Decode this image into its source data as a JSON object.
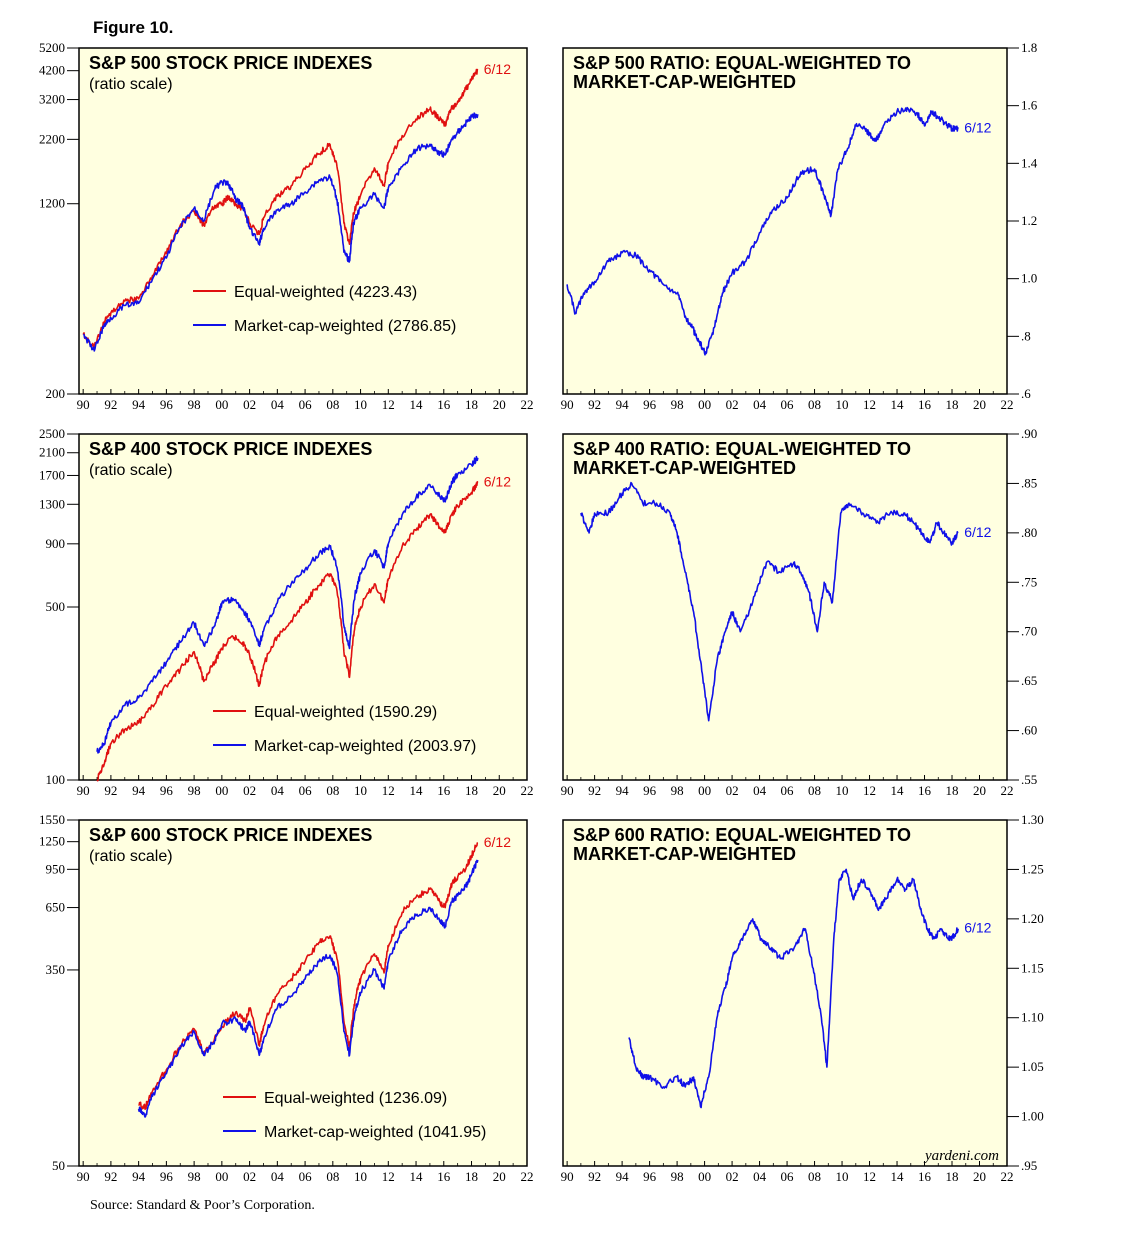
{
  "figure_title": "Figure 10.",
  "source": "Source: Standard & Poor’s Corporation.",
  "watermark": "yardeni.com",
  "colors": {
    "equal": "#e01010",
    "cap": "#1010e8",
    "panel_bg": "#ffffe0"
  },
  "chart_data": [
    {
      "type": "line",
      "title": "S&P 500 STOCK PRICE INDEXES",
      "subtitle": "(ratio scale)",
      "scale": "log",
      "ylim": [
        200,
        5200
      ],
      "yticks": [
        200,
        1200,
        2200,
        3200,
        4200,
        5200
      ],
      "ytick_labels": [
        "200",
        "1200",
        "2200",
        "3200",
        "4200",
        "5200"
      ],
      "axis_side": "left",
      "xlim": [
        1989.7,
        2022
      ],
      "xtick_labels": [
        "90",
        "92",
        "94",
        "96",
        "98",
        "00",
        "02",
        "04",
        "06",
        "08",
        "10",
        "12",
        "14",
        "16",
        "18",
        "20",
        "22"
      ],
      "end_label": "6/12",
      "end_label_series": 0,
      "legend_placement": "center",
      "series": [
        {
          "name": "Equal-weighted (4223.43)",
          "color": "#e01010",
          "x": [
            1990,
            1990.8,
            1991.5,
            1992,
            1993,
            1994,
            1995,
            1996,
            1997,
            1998,
            1998.7,
            1999.5,
            2000,
            2000.5,
            2001,
            2001.5,
            2002,
            2002.7,
            2003,
            2004,
            2005,
            2006,
            2007,
            2007.8,
            2008.3,
            2008.8,
            2009.2,
            2009.5,
            2010,
            2011,
            2011.7,
            2012,
            2013,
            2014,
            2015,
            2015.6,
            2016.1,
            2016.5,
            2017,
            2017.5,
            2018,
            2018.45
          ],
          "y": [
            350,
            310,
            390,
            430,
            480,
            490,
            610,
            750,
            980,
            1120,
            980,
            1180,
            1200,
            1280,
            1190,
            1150,
            1000,
            900,
            1050,
            1290,
            1420,
            1660,
            1920,
            2100,
            1700,
            1000,
            820,
            1100,
            1300,
            1680,
            1420,
            1760,
            2280,
            2660,
            2920,
            2700,
            2540,
            2900,
            3150,
            3450,
            3850,
            4223.43
          ]
        },
        {
          "name": "Market-cap-weighted (2786.85)",
          "color": "#1010e8",
          "x": [
            1990,
            1990.8,
            1991.5,
            1992,
            1993,
            1994,
            1995,
            1996,
            1997,
            1998,
            1998.7,
            1999.5,
            2000,
            2000.5,
            2001,
            2001.5,
            2002,
            2002.7,
            2003,
            2004,
            2005,
            2006,
            2007,
            2007.8,
            2008.3,
            2008.8,
            2009.2,
            2009.5,
            2010,
            2011,
            2011.7,
            2012,
            2013,
            2014,
            2015,
            2015.6,
            2016.1,
            2016.5,
            2017,
            2017.5,
            2018,
            2018.45
          ],
          "y": [
            350,
            300,
            380,
            410,
            460,
            470,
            590,
            720,
            960,
            1150,
            1020,
            1380,
            1470,
            1440,
            1250,
            1180,
            950,
            820,
            950,
            1130,
            1200,
            1340,
            1500,
            1540,
            1250,
            760,
            700,
            1000,
            1150,
            1310,
            1150,
            1390,
            1700,
            2000,
            2100,
            1950,
            1900,
            2150,
            2350,
            2530,
            2720,
            2786.85
          ]
        }
      ]
    },
    {
      "type": "line",
      "title": "S&P 500 RATIO: EQUAL-WEIGHTED TO MARKET-CAP-WEIGHTED",
      "scale": "linear",
      "ylim": [
        0.6,
        1.8
      ],
      "yticks": [
        0.6,
        0.8,
        1.0,
        1.2,
        1.4,
        1.6,
        1.8
      ],
      "ytick_labels": [
        ".6",
        ".8",
        "1.0",
        "1.2",
        "1.4",
        "1.6",
        "1.8"
      ],
      "axis_side": "right",
      "xlim": [
        1989.7,
        2022
      ],
      "xtick_labels": [
        "90",
        "92",
        "94",
        "96",
        "98",
        "00",
        "02",
        "04",
        "06",
        "08",
        "10",
        "12",
        "14",
        "16",
        "18",
        "20",
        "22"
      ],
      "end_label": "6/12",
      "end_label_series": 0,
      "series": [
        {
          "color": "#1010e8",
          "x": [
            1990,
            1990.6,
            1991.2,
            1992,
            1993,
            1994,
            1995,
            1996,
            1997,
            1998,
            1998.6,
            1999.1,
            1999.6,
            2000.1,
            2000.7,
            2001.3,
            2002,
            2003,
            2004,
            2005,
            2006,
            2007,
            2008,
            2008.7,
            2009.2,
            2009.7,
            2010.4,
            2011,
            2011.7,
            2012,
            2012.5,
            2013,
            2014,
            2014.8,
            2015.5,
            2016,
            2016.5,
            2017,
            2017.5,
            2018,
            2018.45
          ],
          "y": [
            0.98,
            0.88,
            0.95,
            0.99,
            1.06,
            1.09,
            1.08,
            1.03,
            0.98,
            0.95,
            0.87,
            0.83,
            0.78,
            0.74,
            0.83,
            0.95,
            1.02,
            1.06,
            1.16,
            1.24,
            1.28,
            1.37,
            1.38,
            1.29,
            1.22,
            1.38,
            1.45,
            1.53,
            1.52,
            1.5,
            1.48,
            1.53,
            1.58,
            1.59,
            1.57,
            1.53,
            1.58,
            1.56,
            1.54,
            1.52,
            1.52
          ]
        }
      ]
    },
    {
      "type": "line",
      "title": "S&P 400 STOCK PRICE INDEXES",
      "subtitle": "(ratio scale)",
      "scale": "log",
      "ylim": [
        100,
        2500
      ],
      "yticks": [
        100,
        500,
        900,
        1300,
        1700,
        2100,
        2500
      ],
      "ytick_labels": [
        "100",
        "500",
        "900",
        "1300",
        "1700",
        "2100",
        "2500"
      ],
      "axis_side": "left",
      "xlim": [
        1989.7,
        2022
      ],
      "xtick_labels": [
        "90",
        "92",
        "94",
        "96",
        "98",
        "00",
        "02",
        "04",
        "06",
        "08",
        "10",
        "12",
        "14",
        "16",
        "18",
        "20",
        "22"
      ],
      "end_label": "6/12",
      "end_label_series": 0,
      "legend_placement": "bottom-center",
      "series": [
        {
          "name": "Equal-weighted (1590.29)",
          "color": "#e01010",
          "x": [
            1991,
            1991.5,
            1992,
            1993,
            1994,
            1995,
            1996,
            1997,
            1998,
            1998.7,
            1999.5,
            2000,
            2000.8,
            2001.5,
            2002,
            2002.7,
            2003,
            2004,
            2005,
            2006,
            2007,
            2007.8,
            2008.3,
            2008.8,
            2009.2,
            2009.6,
            2010,
            2011,
            2011.7,
            2012,
            2013,
            2014,
            2015,
            2015.7,
            2016.1,
            2016.6,
            2017,
            2018,
            2018.45
          ],
          "y": [
            100,
            115,
            140,
            160,
            170,
            200,
            240,
            280,
            330,
            250,
            300,
            340,
            380,
            360,
            320,
            240,
            290,
            380,
            440,
            520,
            610,
            680,
            580,
            330,
            260,
            420,
            500,
            620,
            520,
            650,
            880,
            1020,
            1180,
            1050,
            1000,
            1190,
            1280,
            1450,
            1590.29
          ]
        },
        {
          "name": "Market-cap-weighted (2003.97)",
          "color": "#1010e8",
          "x": [
            1991,
            1991.5,
            1992,
            1993,
            1994,
            1995,
            1996,
            1997,
            1998,
            1998.7,
            1999.5,
            2000,
            2000.8,
            2001.5,
            2002,
            2002.7,
            2003,
            2004,
            2005,
            2006,
            2007,
            2007.8,
            2008.3,
            2008.8,
            2009.2,
            2009.6,
            2010,
            2011,
            2011.7,
            2012,
            2013,
            2014,
            2015,
            2015.7,
            2016.1,
            2016.6,
            2017,
            2018,
            2018.45
          ],
          "y": [
            130,
            140,
            170,
            200,
            215,
            250,
            300,
            360,
            430,
            350,
            420,
            520,
            540,
            490,
            440,
            350,
            400,
            520,
            620,
            710,
            820,
            880,
            720,
            420,
            340,
            560,
            680,
            850,
            720,
            900,
            1180,
            1380,
            1560,
            1400,
            1330,
            1600,
            1720,
            1880,
            2003.97
          ]
        }
      ]
    },
    {
      "type": "line",
      "title": "S&P 400 RATIO: EQUAL-WEIGHTED TO MARKET-CAP-WEIGHTED",
      "scale": "linear",
      "ylim": [
        0.55,
        0.9
      ],
      "yticks": [
        0.55,
        0.6,
        0.65,
        0.7,
        0.75,
        0.8,
        0.85,
        0.9
      ],
      "ytick_labels": [
        ".55",
        ".60",
        ".65",
        ".70",
        ".75",
        ".80",
        ".85",
        ".90"
      ],
      "axis_side": "right",
      "xlim": [
        1989.7,
        2022
      ],
      "xtick_labels": [
        "90",
        "92",
        "94",
        "96",
        "98",
        "00",
        "02",
        "04",
        "06",
        "08",
        "10",
        "12",
        "14",
        "16",
        "18",
        "20",
        "22"
      ],
      "end_label": "6/12",
      "end_label_series": 0,
      "series": [
        {
          "color": "#1010e8",
          "x": [
            1991,
            1991.6,
            1992,
            1993,
            1994,
            1994.7,
            1995.5,
            1996.5,
            1997.5,
            1998,
            1998.6,
            1999.2,
            1999.8,
            2000.3,
            2000.9,
            2001.5,
            2002,
            2002.6,
            2003.5,
            2004.5,
            2005.5,
            2006.5,
            2007,
            2007.6,
            2008.2,
            2008.7,
            2009.3,
            2009.9,
            2010.5,
            2011.5,
            2012.5,
            2013.5,
            2014.5,
            2015.2,
            2015.8,
            2016.4,
            2016.9,
            2017.4,
            2018,
            2018.45
          ],
          "y": [
            0.82,
            0.8,
            0.82,
            0.82,
            0.84,
            0.85,
            0.83,
            0.83,
            0.82,
            0.8,
            0.76,
            0.72,
            0.66,
            0.61,
            0.67,
            0.7,
            0.72,
            0.7,
            0.73,
            0.77,
            0.76,
            0.77,
            0.76,
            0.74,
            0.7,
            0.75,
            0.73,
            0.82,
            0.83,
            0.82,
            0.81,
            0.82,
            0.82,
            0.81,
            0.8,
            0.79,
            0.81,
            0.8,
            0.79,
            0.8
          ]
        }
      ]
    },
    {
      "type": "line",
      "title": "S&P 600 STOCK PRICE INDEXES",
      "subtitle": "(ratio scale)",
      "scale": "log",
      "ylim": [
        50,
        1550
      ],
      "yticks": [
        50,
        350,
        650,
        950,
        1250,
        1550
      ],
      "ytick_labels": [
        "50",
        "350",
        "650",
        "950",
        "1250",
        "1550"
      ],
      "axis_side": "left",
      "xlim": [
        1989.7,
        2022
      ],
      "xtick_labels": [
        "90",
        "92",
        "94",
        "96",
        "98",
        "00",
        "02",
        "04",
        "06",
        "08",
        "10",
        "12",
        "14",
        "16",
        "18",
        "20",
        "22"
      ],
      "end_label": "6/12",
      "end_label_series": 0,
      "legend_placement": "bottom-center",
      "series": [
        {
          "name": "Equal-weighted (1236.09)",
          "color": "#e01010",
          "x": [
            1994,
            1994.5,
            1995,
            1996,
            1997,
            1998,
            1998.7,
            1999.5,
            2000,
            2001,
            2001.7,
            2002,
            2002.7,
            2003,
            2004,
            2005,
            2006,
            2007,
            2007.8,
            2008.3,
            2008.8,
            2009.2,
            2009.6,
            2010,
            2011,
            2011.7,
            2012,
            2013,
            2014,
            2015,
            2015.7,
            2016.1,
            2016.6,
            2017,
            2017.6,
            2018,
            2018.45
          ],
          "y": [
            92,
            90,
            105,
            130,
            165,
            195,
            150,
            180,
            200,
            230,
            210,
            240,
            165,
            200,
            275,
            320,
            380,
            460,
            490,
            390,
            210,
            160,
            260,
            320,
            410,
            340,
            440,
            620,
            720,
            780,
            690,
            650,
            830,
            880,
            960,
            1090,
            1236.09
          ]
        },
        {
          "name": "Market-cap-weighted (1041.95)",
          "color": "#1010e8",
          "x": [
            1994,
            1994.5,
            1995,
            1996,
            1997,
            1998,
            1998.7,
            1999.5,
            2000,
            2001,
            2001.7,
            2002,
            2002.7,
            2003,
            2004,
            2005,
            2006,
            2007,
            2007.8,
            2008.3,
            2008.8,
            2009.2,
            2009.6,
            2010,
            2011,
            2011.7,
            2012,
            2013,
            2014,
            2015,
            2015.7,
            2016.1,
            2016.6,
            2017,
            2017.6,
            2018,
            2018.45
          ],
          "y": [
            88,
            82,
            100,
            125,
            160,
            190,
            150,
            175,
            205,
            215,
            190,
            210,
            150,
            175,
            240,
            270,
            320,
            380,
            405,
            340,
            190,
            150,
            230,
            280,
            350,
            290,
            380,
            520,
            600,
            650,
            570,
            540,
            690,
            730,
            800,
            900,
            1041.95
          ]
        }
      ]
    },
    {
      "type": "line",
      "title": "S&P 600 RATIO: EQUAL-WEIGHTED TO MARKET-CAP-WEIGHTED",
      "scale": "linear",
      "ylim": [
        0.95,
        1.3
      ],
      "yticks": [
        0.95,
        1.0,
        1.05,
        1.1,
        1.15,
        1.2,
        1.25,
        1.3
      ],
      "ytick_labels": [
        ".95",
        "1.00",
        "1.05",
        "1.10",
        "1.15",
        "1.20",
        "1.25",
        "1.30"
      ],
      "axis_side": "right",
      "xlim": [
        1989.7,
        2022
      ],
      "xtick_labels": [
        "90",
        "92",
        "94",
        "96",
        "98",
        "00",
        "02",
        "04",
        "06",
        "08",
        "10",
        "12",
        "14",
        "16",
        "18",
        "20",
        "22"
      ],
      "end_label": "6/12",
      "end_label_series": 0,
      "series": [
        {
          "color": "#1010e8",
          "x": [
            1994.5,
            1995,
            1995.5,
            1996,
            1997,
            1998,
            1998.6,
            1999.2,
            1999.7,
            2000.3,
            2000.9,
            2001.5,
            2002,
            2002.7,
            2003.5,
            2004.1,
            2004.8,
            2005.5,
            2006.5,
            2007.3,
            2007.9,
            2008.5,
            2008.9,
            2009.4,
            2009.8,
            2010.3,
            2010.8,
            2011.4,
            2012,
            2012.6,
            2013.2,
            2014,
            2014.6,
            2015.2,
            2015.7,
            2016.2,
            2016.7,
            2017.2,
            2017.7,
            2018,
            2018.45
          ],
          "y": [
            1.08,
            1.05,
            1.04,
            1.04,
            1.03,
            1.04,
            1.03,
            1.04,
            1.01,
            1.04,
            1.1,
            1.13,
            1.16,
            1.18,
            1.2,
            1.18,
            1.17,
            1.16,
            1.17,
            1.19,
            1.15,
            1.1,
            1.05,
            1.18,
            1.24,
            1.25,
            1.22,
            1.24,
            1.23,
            1.21,
            1.22,
            1.24,
            1.23,
            1.24,
            1.21,
            1.19,
            1.18,
            1.19,
            1.18,
            1.18,
            1.19
          ]
        }
      ]
    }
  ]
}
